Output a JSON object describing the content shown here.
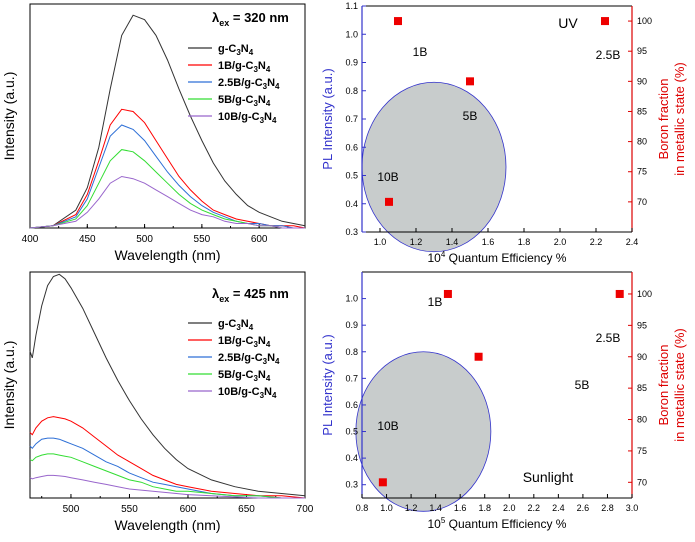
{
  "colors": {
    "g_c3n4": "#333333",
    "b1": "#ff0000",
    "b2_5": "#2d6fd6",
    "b5": "#33dd33",
    "b10": "#9966cc",
    "left_axis": "#3333cc",
    "right_axis": "#dd0000",
    "marker": "#ee0000",
    "circle_fill": "#c8cccc",
    "circle_stroke": "#3333cc"
  },
  "chart_data": [
    {
      "id": "tl",
      "type": "line",
      "title_lambda": "λ",
      "title_sub": "ex",
      "title_rest": " = 320 nm",
      "xlabel": "Wavelength (nm)",
      "ylabel": "Intensity (a.u.)",
      "xlim": [
        400,
        640
      ],
      "ylim": [
        0,
        1
      ],
      "xticks": [
        400,
        450,
        500,
        550,
        600
      ],
      "legend": [
        "g-C3N4",
        "1B/g-C3N4",
        "2.5B/g-C3N4",
        "5B/g-C3N4",
        "10B/g-C3N4"
      ],
      "series": [
        {
          "name": "g-C3N4",
          "color_key": "g_c3n4",
          "x": [
            400,
            420,
            440,
            450,
            460,
            470,
            480,
            490,
            500,
            510,
            520,
            530,
            540,
            550,
            560,
            570,
            580,
            590,
            600,
            610,
            620,
            630,
            640
          ],
          "values": [
            0.0,
            0.01,
            0.08,
            0.18,
            0.36,
            0.62,
            0.86,
            0.95,
            0.93,
            0.86,
            0.75,
            0.62,
            0.5,
            0.39,
            0.29,
            0.21,
            0.15,
            0.1,
            0.07,
            0.05,
            0.03,
            0.02,
            0.01
          ]
        },
        {
          "name": "1B/g-C3N4",
          "color_key": "b1",
          "x": [
            400,
            420,
            440,
            450,
            460,
            470,
            480,
            490,
            500,
            510,
            520,
            530,
            540,
            550,
            560,
            570,
            580,
            590,
            600,
            610,
            620,
            630,
            640
          ],
          "values": [
            0.0,
            0.01,
            0.06,
            0.15,
            0.3,
            0.46,
            0.53,
            0.52,
            0.47,
            0.39,
            0.31,
            0.23,
            0.17,
            0.12,
            0.08,
            0.06,
            0.04,
            0.03,
            0.02,
            0.01,
            0.01,
            0.01,
            0.0
          ]
        },
        {
          "name": "2.5B/g-C3N4",
          "color_key": "b2_5",
          "x": [
            400,
            420,
            440,
            450,
            460,
            470,
            480,
            490,
            500,
            510,
            520,
            530,
            540,
            550,
            560,
            570,
            580,
            590,
            600,
            610,
            620,
            630,
            640
          ],
          "values": [
            0.0,
            0.01,
            0.05,
            0.13,
            0.27,
            0.41,
            0.46,
            0.44,
            0.39,
            0.32,
            0.25,
            0.19,
            0.14,
            0.1,
            0.07,
            0.05,
            0.03,
            0.02,
            0.02,
            0.01,
            0.01,
            0.0,
            0.0
          ]
        },
        {
          "name": "5B/g-C3N4",
          "color_key": "b5",
          "x": [
            400,
            420,
            440,
            450,
            460,
            470,
            480,
            490,
            500,
            510,
            520,
            530,
            540,
            550,
            560,
            570,
            580,
            590,
            600,
            610,
            620,
            630,
            640
          ],
          "values": [
            0.0,
            0.01,
            0.04,
            0.1,
            0.2,
            0.3,
            0.35,
            0.34,
            0.3,
            0.25,
            0.2,
            0.15,
            0.11,
            0.08,
            0.06,
            0.04,
            0.03,
            0.02,
            0.01,
            0.01,
            0.0,
            0.0,
            0.0
          ]
        },
        {
          "name": "10B/g-C3N4",
          "color_key": "b10",
          "x": [
            400,
            420,
            440,
            450,
            460,
            470,
            480,
            490,
            500,
            510,
            520,
            530,
            540,
            550,
            560,
            570,
            580,
            590,
            600,
            610,
            620,
            630,
            640
          ],
          "values": [
            0.0,
            0.01,
            0.03,
            0.07,
            0.13,
            0.2,
            0.23,
            0.22,
            0.2,
            0.17,
            0.14,
            0.11,
            0.08,
            0.06,
            0.05,
            0.03,
            0.02,
            0.02,
            0.01,
            0.01,
            0.0,
            0.0,
            0.0
          ]
        }
      ]
    },
    {
      "id": "bl",
      "type": "line",
      "title_lambda": "λ",
      "title_sub": "ex",
      "title_rest": " = 425 nm",
      "xlabel": "Wavelength (nm)",
      "ylabel": "Intensity (a.u.)",
      "xlim": [
        465,
        700
      ],
      "ylim": [
        0,
        1
      ],
      "xticks": [
        500,
        550,
        600,
        650,
        700
      ],
      "legend": [
        "g-C3N4",
        "1B/g-C3N4",
        "2.5B/g-C3N4",
        "5B/g-C3N4",
        "10B/g-C3N4"
      ],
      "series": [
        {
          "name": "g-C3N4",
          "color_key": "g_c3n4",
          "x": [
            465,
            467,
            470,
            475,
            480,
            485,
            490,
            495,
            500,
            510,
            520,
            530,
            540,
            550,
            560,
            570,
            580,
            590,
            600,
            620,
            640,
            660,
            680,
            700
          ],
          "values": [
            0.65,
            0.62,
            0.72,
            0.85,
            0.94,
            0.98,
            0.99,
            0.97,
            0.93,
            0.84,
            0.73,
            0.62,
            0.52,
            0.43,
            0.35,
            0.28,
            0.22,
            0.17,
            0.13,
            0.08,
            0.05,
            0.03,
            0.02,
            0.01
          ]
        },
        {
          "name": "1B/g-C3N4",
          "color_key": "b1",
          "x": [
            465,
            467,
            470,
            475,
            480,
            485,
            490,
            495,
            500,
            510,
            520,
            530,
            540,
            550,
            560,
            570,
            580,
            590,
            600,
            620,
            640,
            660,
            680,
            700
          ],
          "values": [
            0.29,
            0.28,
            0.31,
            0.34,
            0.355,
            0.36,
            0.355,
            0.35,
            0.34,
            0.31,
            0.27,
            0.23,
            0.19,
            0.16,
            0.13,
            0.1,
            0.08,
            0.06,
            0.05,
            0.03,
            0.02,
            0.01,
            0.01,
            0.0
          ]
        },
        {
          "name": "2.5B/g-C3N4",
          "color_key": "b2_5",
          "x": [
            465,
            467,
            470,
            475,
            480,
            485,
            490,
            495,
            500,
            510,
            520,
            530,
            540,
            550,
            560,
            570,
            580,
            590,
            600,
            620,
            640,
            660,
            680,
            700
          ],
          "values": [
            0.23,
            0.22,
            0.24,
            0.26,
            0.265,
            0.265,
            0.26,
            0.25,
            0.24,
            0.22,
            0.19,
            0.16,
            0.14,
            0.11,
            0.09,
            0.07,
            0.06,
            0.05,
            0.04,
            0.02,
            0.01,
            0.01,
            0.0,
            0.0
          ]
        },
        {
          "name": "5B/g-C3N4",
          "color_key": "b5",
          "x": [
            465,
            467,
            470,
            475,
            480,
            485,
            490,
            495,
            500,
            510,
            520,
            530,
            540,
            550,
            560,
            570,
            580,
            590,
            600,
            620,
            640,
            660,
            680,
            700
          ],
          "values": [
            0.17,
            0.165,
            0.18,
            0.19,
            0.195,
            0.195,
            0.19,
            0.185,
            0.18,
            0.16,
            0.14,
            0.12,
            0.1,
            0.08,
            0.07,
            0.05,
            0.04,
            0.03,
            0.03,
            0.02,
            0.01,
            0.01,
            0.0,
            0.0
          ]
        },
        {
          "name": "10B/g-C3N4",
          "color_key": "b10",
          "x": [
            465,
            467,
            470,
            475,
            480,
            485,
            490,
            495,
            500,
            510,
            520,
            530,
            540,
            550,
            560,
            570,
            580,
            590,
            600,
            620,
            640,
            660,
            680,
            700
          ],
          "values": [
            0.09,
            0.085,
            0.09,
            0.095,
            0.1,
            0.1,
            0.098,
            0.095,
            0.09,
            0.08,
            0.07,
            0.06,
            0.05,
            0.04,
            0.035,
            0.03,
            0.025,
            0.02,
            0.015,
            0.01,
            0.005,
            0.0,
            0.0,
            0.0
          ]
        }
      ]
    },
    {
      "id": "tr",
      "type": "scatter",
      "xlabel_prefix": "10",
      "xlabel_exp": "4",
      "xlabel_rest": " Quantum Efficiency  %",
      "ylabel_left": "PL Intensity (a.u.)",
      "ylabel_right_1": "Boron fraction",
      "ylabel_right_2": "in metallic state (%)",
      "xlim": [
        0.9,
        2.4
      ],
      "ylim_left": [
        0.3,
        1.1
      ],
      "ylim_right": [
        65,
        102.5
      ],
      "xticks": [
        "1.0",
        "1.2",
        "1.4",
        "1.6",
        "1.8",
        "2.0",
        "2.2",
        "2.4"
      ],
      "yticks_left": [
        "0.3",
        "0.4",
        "0.5",
        "0.6",
        "0.7",
        "0.8",
        "0.9",
        "1.0",
        "1.1"
      ],
      "yticks_right": [
        "70",
        "75",
        "80",
        "85",
        "90",
        "95",
        "100"
      ],
      "annotation": "UV",
      "points": [
        {
          "x": 1.1,
          "boron": 100,
          "label": "1B"
        },
        {
          "x": 2.25,
          "boron": 100,
          "label": "2.5B"
        },
        {
          "x": 1.5,
          "boron": 90,
          "label": "5B"
        },
        {
          "x": 1.05,
          "boron": 70,
          "label": "10B"
        }
      ],
      "circle": {
        "cx": 1.3,
        "cy_left": 0.53,
        "rx_x": 0.4,
        "ry_left": 0.3
      }
    },
    {
      "id": "br",
      "type": "scatter",
      "xlabel_prefix": "10",
      "xlabel_exp": "5",
      "xlabel_rest": " Quantum Efficiency  %",
      "ylabel_left": "PL Intensity (a.u.)",
      "ylabel_right_1": "Boron fraction",
      "ylabel_right_2": "in metallic state (%)",
      "xlim": [
        0.8,
        3.0
      ],
      "ylim_left": [
        0.25,
        1.1
      ],
      "ylim_right": [
        67.5,
        103.5
      ],
      "xticks": [
        "0.8",
        "1.0",
        "1.2",
        "1.4",
        "1.6",
        "1.8",
        "2.0",
        "2.2",
        "2.4",
        "2.6",
        "2.8",
        "3.0"
      ],
      "yticks_left": [
        "0.3",
        "0.4",
        "0.5",
        "0.6",
        "0.7",
        "0.8",
        "0.9",
        "1.0"
      ],
      "yticks_right": [
        "70",
        "75",
        "80",
        "85",
        "90",
        "95",
        "100"
      ],
      "annotation": "Sunlight",
      "points": [
        {
          "x": 1.5,
          "boron": 100,
          "label": "1B"
        },
        {
          "x": 2.9,
          "boron": 100,
          "label": "2.5B"
        },
        {
          "x": 1.75,
          "boron": 90,
          "label": "5B"
        },
        {
          "x": 0.97,
          "boron": 70,
          "label": "10B"
        }
      ],
      "circle": {
        "cx": 1.3,
        "cy_left": 0.5,
        "rx_x": 0.55,
        "ry_left": 0.3
      }
    }
  ]
}
